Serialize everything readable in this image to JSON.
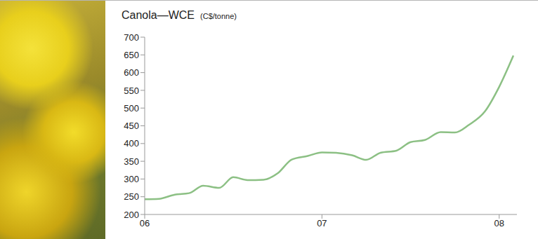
{
  "chart_data": {
    "type": "line",
    "title": "Canola—WCE",
    "subtitle": "(C$/tonne)",
    "x": [
      2006.0,
      2006.08,
      2006.17,
      2006.25,
      2006.33,
      2006.42,
      2006.5,
      2006.58,
      2006.67,
      2006.75,
      2006.83,
      2006.92,
      2007.0,
      2007.08,
      2007.17,
      2007.25,
      2007.33,
      2007.42,
      2007.5,
      2007.58,
      2007.67,
      2007.75,
      2007.83,
      2007.92,
      2008.0,
      2008.08
    ],
    "values": [
      243,
      244,
      256,
      260,
      281,
      275,
      305,
      297,
      298,
      316,
      355,
      365,
      375,
      374,
      367,
      354,
      374,
      380,
      404,
      410,
      432,
      431,
      453,
      491,
      560,
      648
    ],
    "color": "#8cc084",
    "xlim": [
      2006,
      2008.1
    ],
    "xticks": [
      {
        "value": 2006,
        "label": "06"
      },
      {
        "value": 2007,
        "label": "07"
      },
      {
        "value": 2008,
        "label": "08"
      }
    ],
    "ylim": [
      200,
      700
    ],
    "yticks": [
      200,
      250,
      300,
      350,
      400,
      450,
      500,
      550,
      600,
      650,
      700
    ],
    "grid": false
  }
}
